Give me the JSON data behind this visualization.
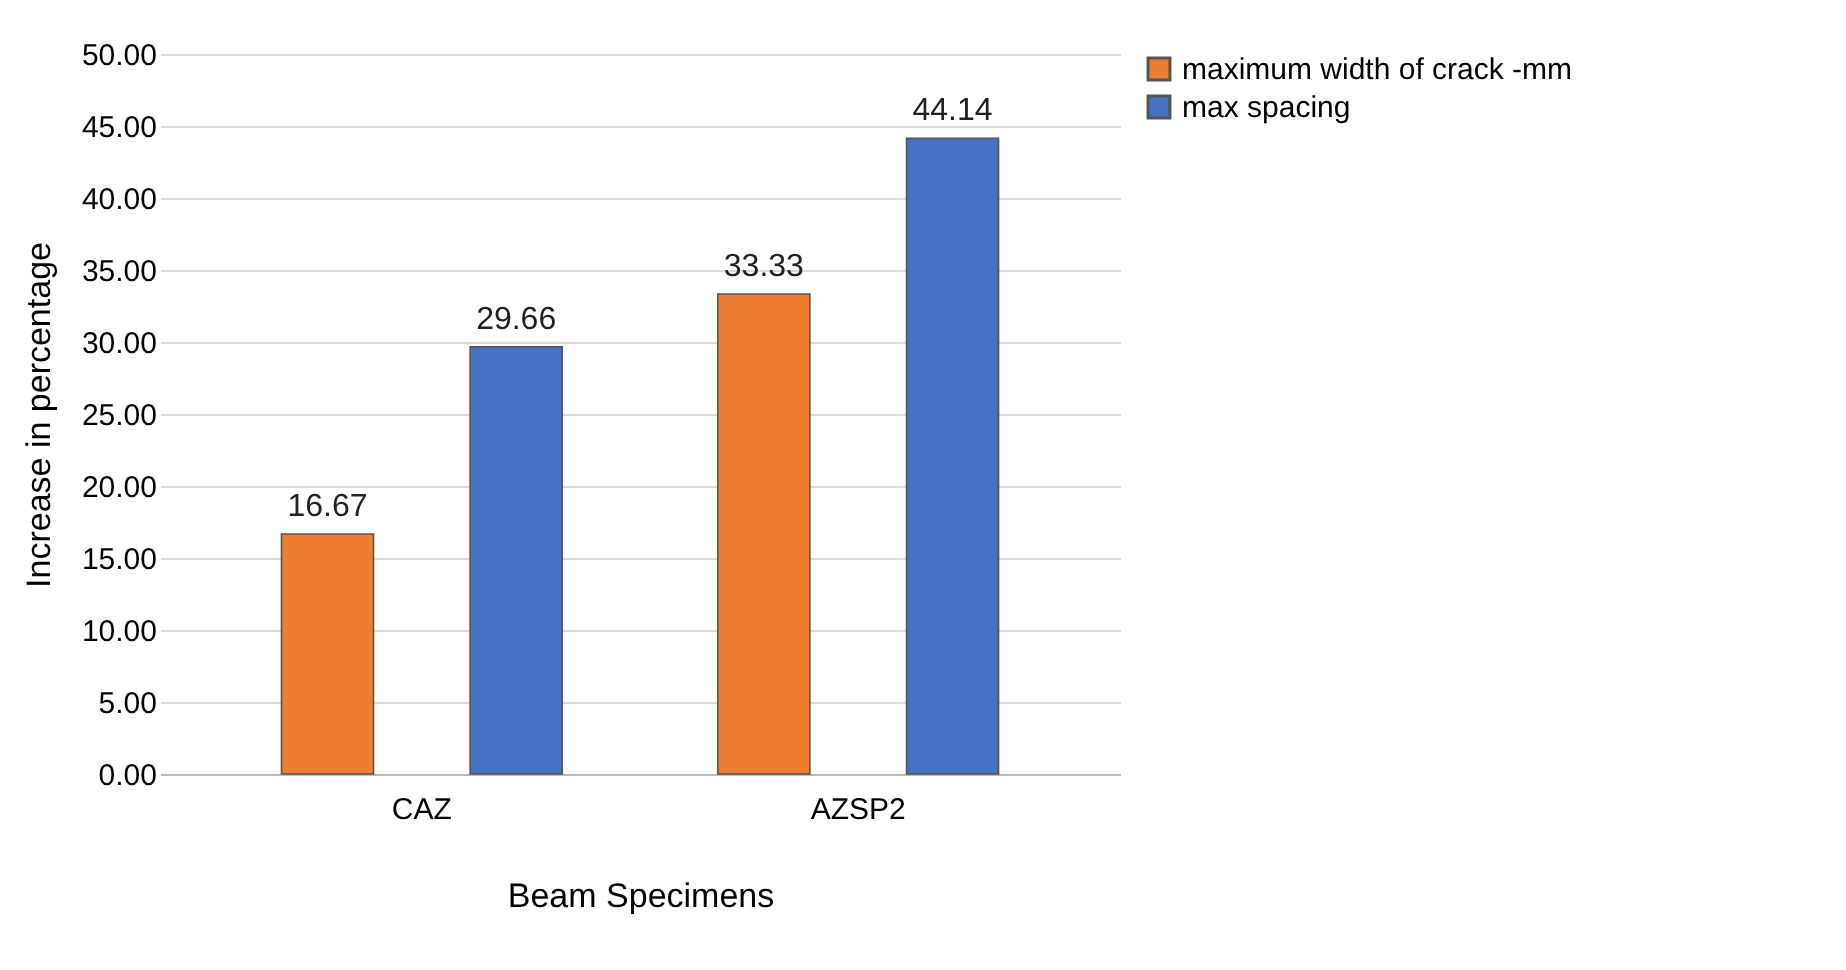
{
  "chart_data": {
    "type": "bar",
    "xlabel": "Beam Specimens",
    "ylabel": "Increase in percentage",
    "categories": [
      "CAZ",
      "AZSP2"
    ],
    "series": [
      {
        "name": "maximum width of crack -mm",
        "color": "#ed7d31",
        "values": [
          16.67,
          33.33
        ]
      },
      {
        "name": "max spacing",
        "color": "#4472c4",
        "values": [
          29.66,
          44.14
        ]
      }
    ],
    "ylim": [
      0,
      50
    ],
    "yticks": [
      {
        "value": 0,
        "label": "0.00"
      },
      {
        "value": 5,
        "label": "5.00"
      },
      {
        "value": 10,
        "label": "10.00"
      },
      {
        "value": 15,
        "label": "15.00"
      },
      {
        "value": 20,
        "label": "20.00"
      },
      {
        "value": 25,
        "label": "25.00"
      },
      {
        "value": 30,
        "label": "30.00"
      },
      {
        "value": 35,
        "label": "35.00"
      },
      {
        "value": 40,
        "label": "40.00"
      },
      {
        "value": 45,
        "label": "45.00"
      },
      {
        "value": 50,
        "label": "50.00"
      }
    ],
    "grid": "y",
    "legend": "right",
    "data_labels": true
  }
}
